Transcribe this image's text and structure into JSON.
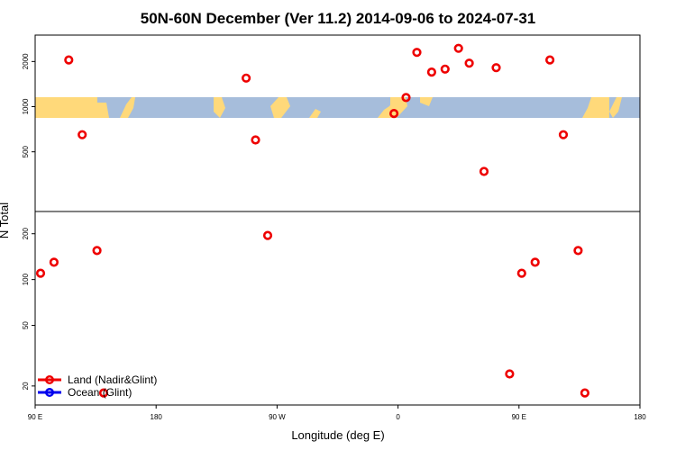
{
  "chart_data": {
    "type": "scatter",
    "title": "50N-60N December (Ver 11.2)   2014-09-06 to 2024-07-31",
    "xlabel": "Longitude (deg E)",
    "ylabel": "N Total",
    "x_ticks": [
      {
        "value": 90,
        "label": "90 E"
      },
      {
        "value": 180,
        "label": "180"
      },
      {
        "value": 270,
        "label": "90 W"
      },
      {
        "value": 360,
        "label": "0"
      },
      {
        "value": 450,
        "label": "90 E"
      },
      {
        "value": 540,
        "label": "180"
      }
    ],
    "xlim": [
      90,
      540
    ],
    "panels": [
      {
        "name": "upper",
        "ylim": [
          200,
          3000
        ],
        "scale": "log",
        "y_ticks": [
          500,
          1000,
          2000
        ],
        "points": [
          {
            "x": 115,
            "y": 2050
          },
          {
            "x": 125,
            "y": 650
          },
          {
            "x": 247,
            "y": 1550
          },
          {
            "x": 254,
            "y": 600
          },
          {
            "x": 357,
            "y": 900
          },
          {
            "x": 366,
            "y": 1150
          },
          {
            "x": 374,
            "y": 2300
          },
          {
            "x": 385,
            "y": 1700
          },
          {
            "x": 395,
            "y": 1780
          },
          {
            "x": 405,
            "y": 2450
          },
          {
            "x": 413,
            "y": 1950
          },
          {
            "x": 424,
            "y": 370
          },
          {
            "x": 433,
            "y": 1820
          },
          {
            "x": 473,
            "y": 2050
          },
          {
            "x": 483,
            "y": 650
          }
        ]
      },
      {
        "name": "lower",
        "ylim": [
          15,
          280
        ],
        "scale": "log",
        "y_ticks": [
          20,
          50,
          100,
          200
        ],
        "points": [
          {
            "x": 94,
            "y": 110
          },
          {
            "x": 104,
            "y": 130
          },
          {
            "x": 136,
            "y": 155
          },
          {
            "x": 141,
            "y": 18
          },
          {
            "x": 263,
            "y": 195
          },
          {
            "x": 443,
            "y": 24
          },
          {
            "x": 452,
            "y": 110
          },
          {
            "x": 462,
            "y": 130
          },
          {
            "x": 494,
            "y": 155
          },
          {
            "x": 499,
            "y": 18
          }
        ]
      }
    ],
    "legend": {
      "position": "bottom-left",
      "entries": [
        {
          "label": "Land (Nadir&Glint)",
          "color": "#ee0000"
        },
        {
          "label": "Ocean (Glint)",
          "color": "#0000ee"
        }
      ]
    }
  }
}
